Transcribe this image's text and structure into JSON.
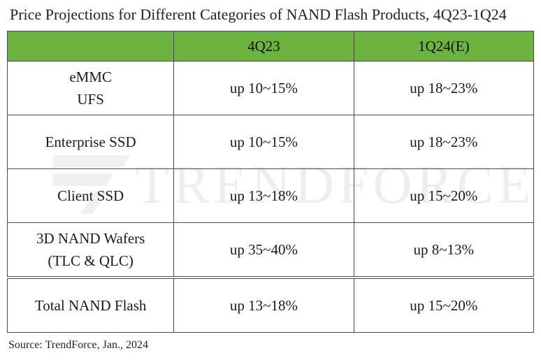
{
  "title": "Price Projections for Different Categories of NAND Flash Products, 4Q23-1Q24",
  "source": "Source: TrendForce, Jan., 2024",
  "watermark": "TRENDFORCE",
  "colors": {
    "header_fill": "#6db33f",
    "border": "#4a4a4a"
  },
  "chart_data": {
    "type": "table",
    "title": "Price Projections for Different Categories of NAND Flash Products, 4Q23-1Q24",
    "columns": [
      "",
      "4Q23",
      "1Q24(E)"
    ],
    "rows": [
      {
        "category": [
          "eMMC",
          "UFS"
        ],
        "q4_23": "up 10~15%",
        "q1_24": "up 18~23%"
      },
      {
        "category": [
          "Enterprise SSD"
        ],
        "q4_23": "up 10~15%",
        "q1_24": "up 18~23%"
      },
      {
        "category": [
          "Client SSD"
        ],
        "q4_23": "up 13~18%",
        "q1_24": "up 15~20%"
      },
      {
        "category": [
          "3D NAND Wafers",
          "(TLC & QLC)"
        ],
        "q4_23": "up 35~40%",
        "q1_24": "up 8~13%"
      },
      {
        "category": [
          "Total NAND Flash"
        ],
        "q4_23": "up 13~18%",
        "q1_24": "up 15~20%"
      }
    ]
  }
}
